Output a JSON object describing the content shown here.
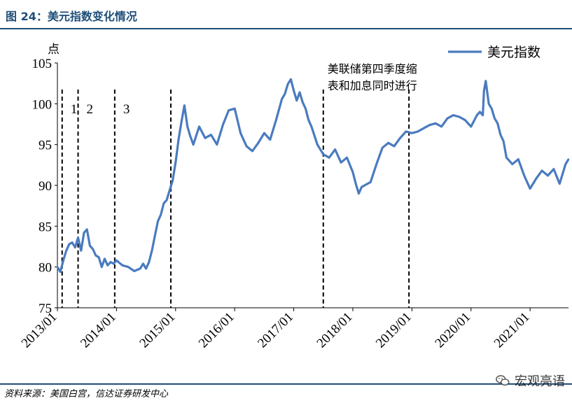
{
  "header": {
    "title": "图 24：美元指数变化情况"
  },
  "footer": {
    "source": "资料来源：美国白宫，信达证券研发中心",
    "watermark": "宏观亮语"
  },
  "chart_data": {
    "type": "line",
    "title": "美元指数变化情况",
    "ylabel": "点",
    "xlabel": "",
    "ylim": [
      75,
      105
    ],
    "yticks": [
      75,
      80,
      85,
      90,
      95,
      100,
      105
    ],
    "xlim": [
      2013.0,
      2021.65
    ],
    "xticks": [
      {
        "value": 2013.0,
        "label": "2013/01"
      },
      {
        "value": 2014.0,
        "label": "2014/01"
      },
      {
        "value": 2015.0,
        "label": "2015/01"
      },
      {
        "value": 2016.0,
        "label": "2016/01"
      },
      {
        "value": 2017.0,
        "label": "2017/01"
      },
      {
        "value": 2018.0,
        "label": "2018/01"
      },
      {
        "value": 2019.0,
        "label": "2019/01"
      },
      {
        "value": 2020.0,
        "label": "2020/01"
      },
      {
        "value": 2021.0,
        "label": "2021/01"
      }
    ],
    "legend": {
      "position": "top-right",
      "label": "美元指数"
    },
    "series": [
      {
        "name": "美元指数",
        "color": "#4a7bbf",
        "x": [
          2013.0,
          2013.05,
          2013.1,
          2013.15,
          2013.2,
          2013.25,
          2013.3,
          2013.35,
          2013.4,
          2013.45,
          2013.5,
          2013.55,
          2013.6,
          2013.65,
          2013.7,
          2013.75,
          2013.8,
          2013.85,
          2013.9,
          2013.95,
          2014.0,
          2014.1,
          2014.2,
          2014.3,
          2014.4,
          2014.45,
          2014.5,
          2014.55,
          2014.6,
          2014.65,
          2014.7,
          2014.75,
          2014.8,
          2014.85,
          2014.9,
          2014.95,
          2015.0,
          2015.05,
          2015.1,
          2015.15,
          2015.2,
          2015.25,
          2015.3,
          2015.4,
          2015.5,
          2015.6,
          2015.7,
          2015.8,
          2015.9,
          2016.0,
          2016.1,
          2016.2,
          2016.3,
          2016.4,
          2016.5,
          2016.6,
          2016.7,
          2016.8,
          2016.85,
          2016.9,
          2016.95,
          2017.0,
          2017.05,
          2017.1,
          2017.15,
          2017.2,
          2017.25,
          2017.3,
          2017.4,
          2017.5,
          2017.6,
          2017.7,
          2017.8,
          2017.9,
          2018.0,
          2018.05,
          2018.1,
          2018.15,
          2018.2,
          2018.3,
          2018.4,
          2018.5,
          2018.6,
          2018.7,
          2018.8,
          2018.9,
          2019.0,
          2019.1,
          2019.2,
          2019.3,
          2019.4,
          2019.5,
          2019.6,
          2019.7,
          2019.8,
          2019.9,
          2020.0,
          2020.1,
          2020.15,
          2020.2,
          2020.22,
          2020.25,
          2020.3,
          2020.35,
          2020.4,
          2020.45,
          2020.5,
          2020.55,
          2020.6,
          2020.7,
          2020.8,
          2020.9,
          2021.0,
          2021.1,
          2021.2,
          2021.3,
          2021.4,
          2021.5,
          2021.6,
          2021.65
        ],
        "y": [
          80.0,
          79.4,
          80.8,
          82.0,
          82.8,
          83.0,
          82.4,
          83.6,
          82.0,
          84.2,
          84.6,
          82.6,
          82.2,
          81.4,
          81.2,
          80.0,
          81.0,
          80.2,
          80.6,
          80.4,
          80.8,
          80.2,
          80.0,
          79.5,
          79.8,
          80.4,
          79.8,
          80.6,
          82.0,
          83.8,
          85.6,
          86.4,
          87.8,
          88.2,
          89.4,
          90.6,
          92.8,
          95.6,
          97.8,
          99.8,
          97.2,
          96.0,
          95.0,
          97.2,
          95.8,
          96.2,
          95.0,
          97.4,
          99.2,
          99.4,
          96.4,
          94.8,
          94.2,
          95.2,
          96.4,
          95.6,
          98.0,
          100.6,
          101.2,
          102.4,
          103.0,
          101.6,
          100.4,
          101.4,
          100.2,
          99.4,
          98.0,
          97.2,
          95.0,
          93.8,
          93.4,
          94.4,
          92.8,
          93.4,
          91.6,
          90.2,
          89.0,
          89.8,
          90.0,
          90.4,
          92.6,
          94.6,
          95.2,
          94.8,
          95.8,
          96.6,
          96.4,
          96.6,
          97.0,
          97.4,
          97.6,
          97.2,
          98.2,
          98.6,
          98.4,
          98.0,
          97.2,
          98.6,
          99.0,
          98.6,
          101.6,
          102.8,
          100.0,
          99.4,
          98.2,
          97.6,
          96.2,
          95.4,
          93.4,
          92.6,
          93.2,
          91.2,
          89.6,
          90.8,
          91.8,
          91.2,
          92.0,
          90.2,
          92.6,
          93.2
        ]
      }
    ],
    "vlines": [
      {
        "x": 2013.08,
        "label": "1"
      },
      {
        "x": 2013.35,
        "label": "2"
      },
      {
        "x": 2013.97,
        "label": "3"
      },
      {
        "x": 2014.92,
        "label": ""
      },
      {
        "x": 2017.5,
        "label": ""
      },
      {
        "x": 2018.95,
        "label": ""
      }
    ],
    "annotations": [
      {
        "text": "美联储第四季度缩",
        "anchor_x": 2017.5,
        "line": 1
      },
      {
        "text": "表和加息同时进行",
        "anchor_x": 2017.5,
        "line": 2
      }
    ]
  }
}
